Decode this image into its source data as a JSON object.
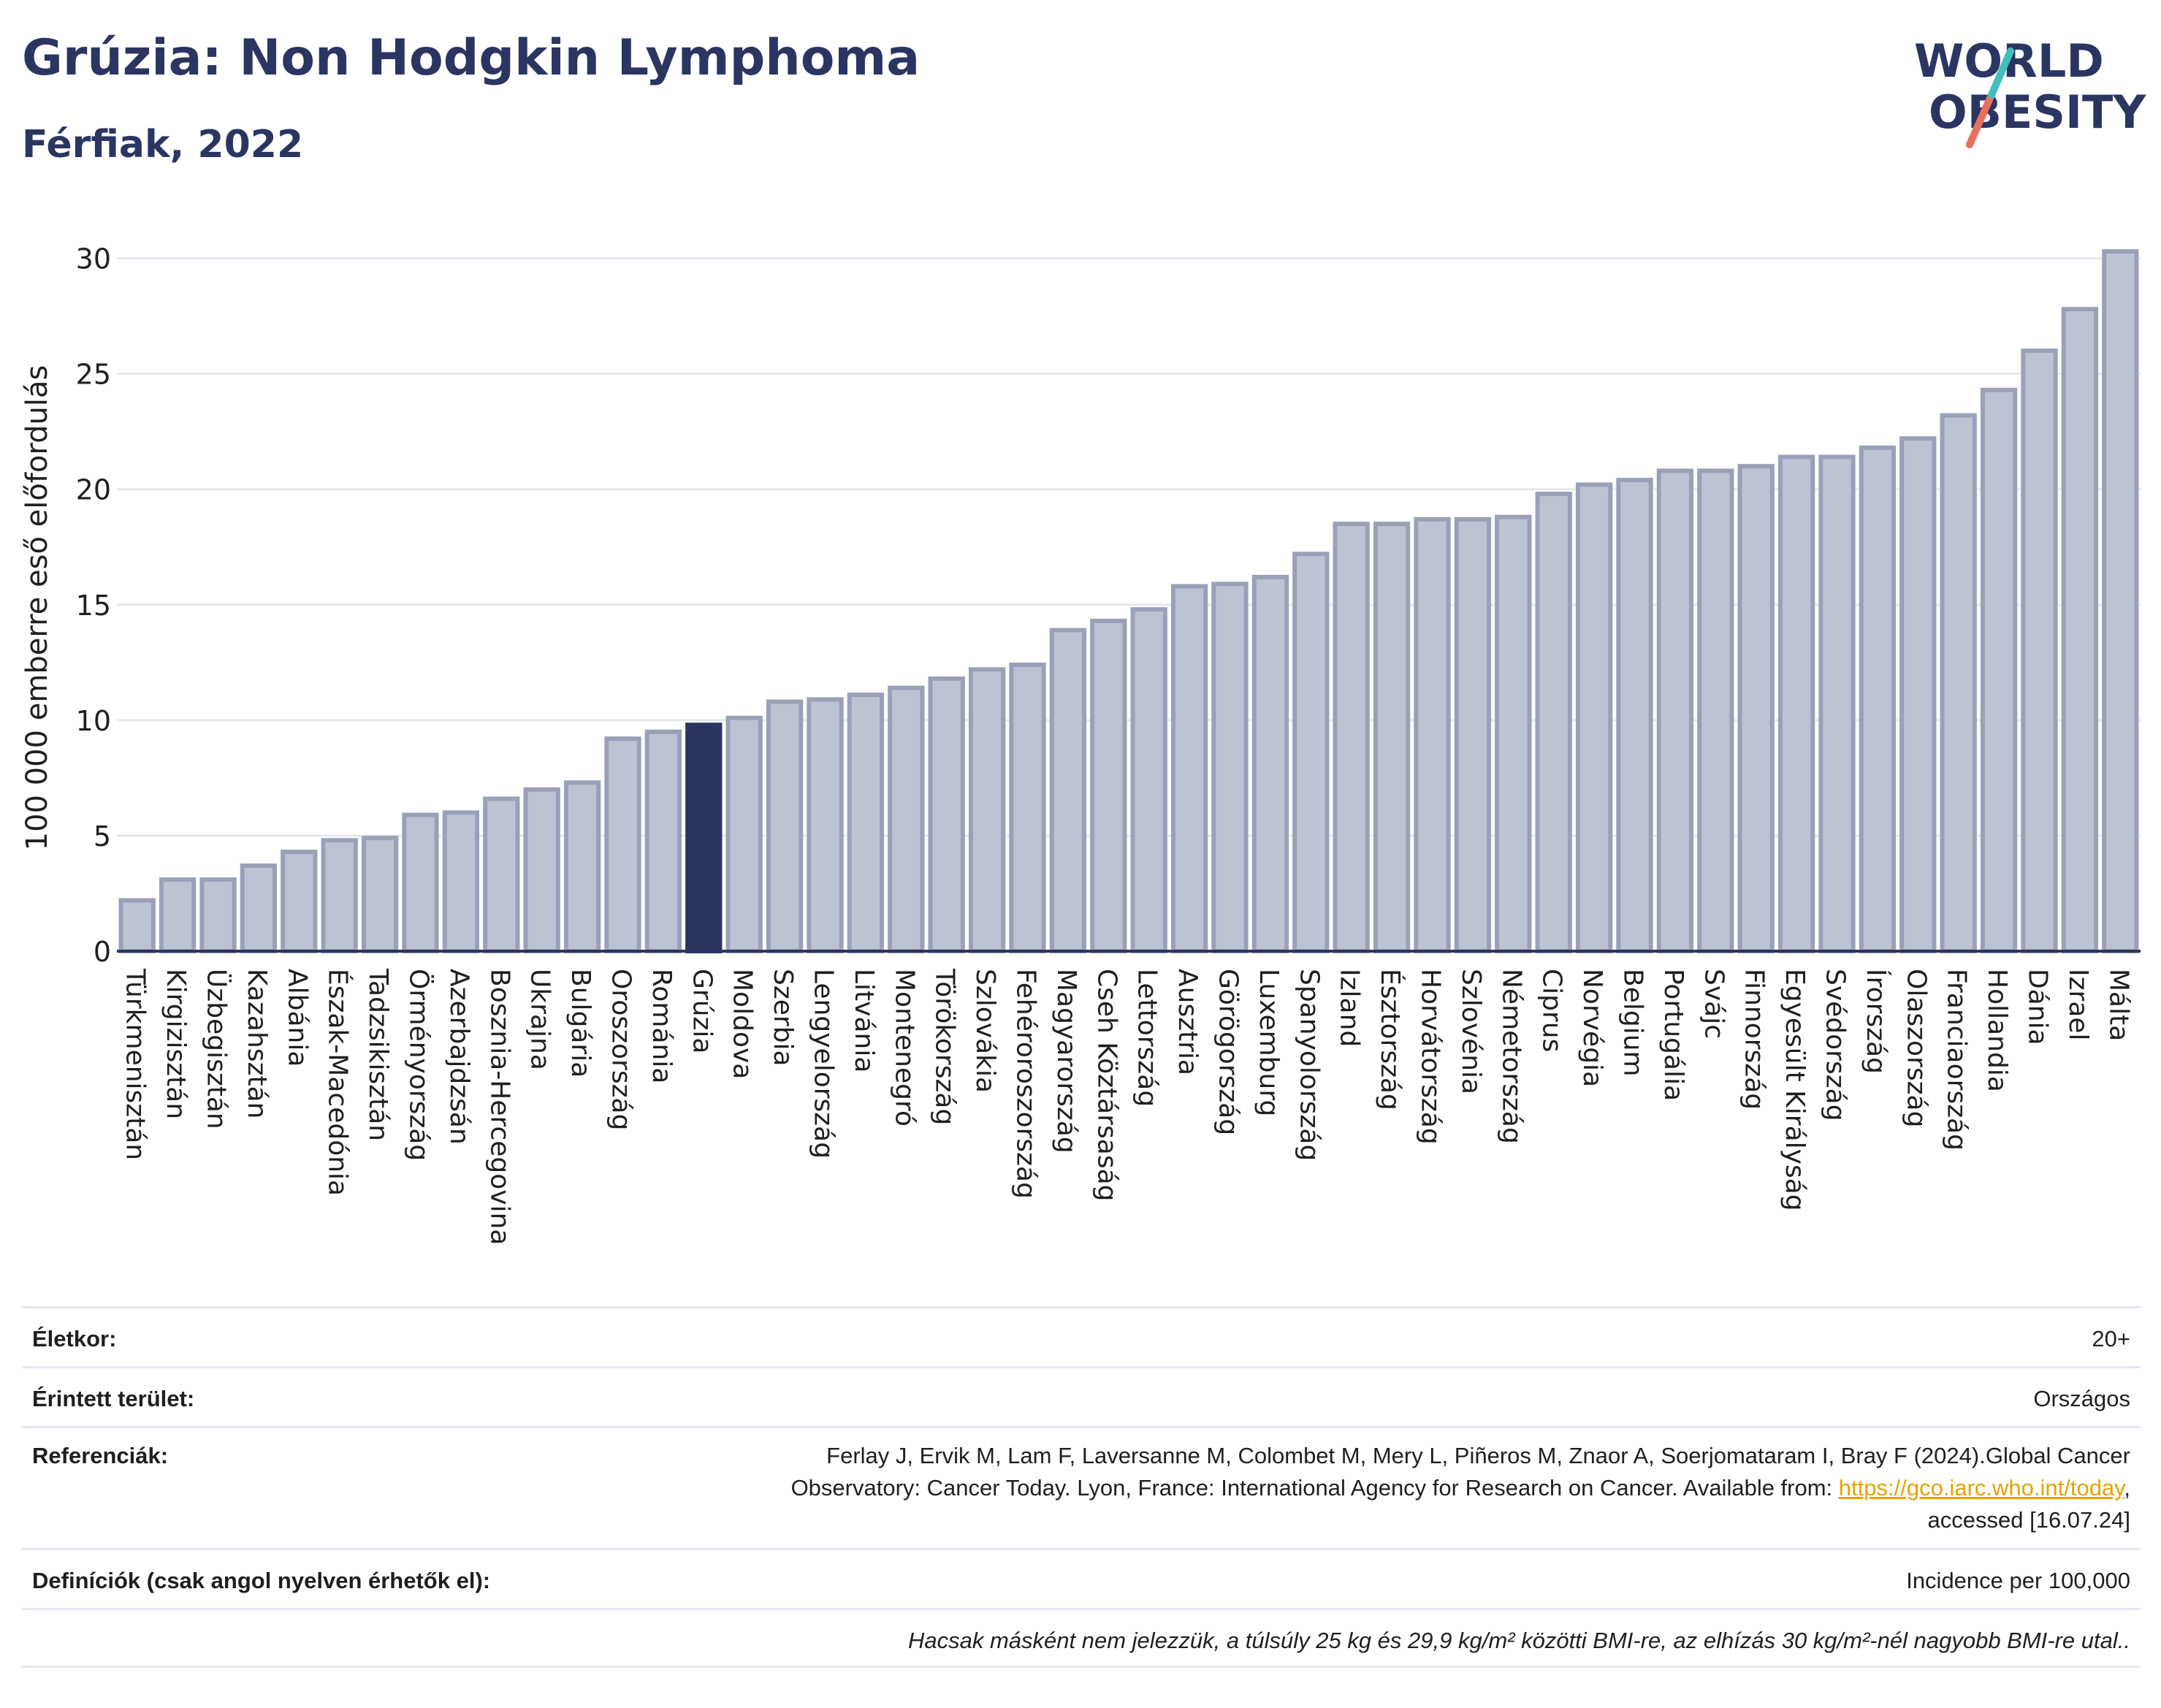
{
  "header": {
    "title": "Grúzia: Non Hodgkin Lymphoma",
    "subtitle": "Férfiak, 2022"
  },
  "logo": {
    "line1": "WORLD",
    "line2": "OBESITY"
  },
  "colors": {
    "bar": "#bec3d3",
    "bar_edge": "#9aa0b8",
    "highlight": "#2b3561",
    "grid": "#e5e8ee",
    "axis": "#2b3561"
  },
  "chart_data": {
    "type": "bar",
    "ylabel": "100 000 emberre eső előfordulás",
    "ylim": [
      0,
      31
    ],
    "yticks": [
      0,
      5,
      10,
      15,
      20,
      25,
      30
    ],
    "grid": true,
    "highlight": "Grúzia",
    "categories": [
      "Türkmenisztán",
      "Kirgizisztán",
      "Üzbegisztán",
      "Kazahsztán",
      "Albánia",
      "Észak-Macedónia",
      "Tadzsikisztán",
      "Örményország",
      "Azerbajdzsán",
      "Bosznia-Hercegovina",
      "Ukrajna",
      "Bulgária",
      "Oroszország",
      "Románia",
      "Grúzia",
      "Moldova",
      "Szerbia",
      "Lengyelország",
      "Litvánia",
      "Montenegró",
      "Törökország",
      "Szlovákia",
      "Fehéroroszország",
      "Magyarország",
      "Cseh Köztársaság",
      "Lettország",
      "Ausztria",
      "Görögország",
      "Luxemburg",
      "Spanyolország",
      "Izland",
      "Észtország",
      "Horvátország",
      "Szlovénia",
      "Németország",
      "Ciprus",
      "Norvégia",
      "Belgium",
      "Portugália",
      "Svájc",
      "Finnország",
      "Egyesült Királyság",
      "Svédország",
      "Írország",
      "Olaszország",
      "Franciaország",
      "Hollandia",
      "Dánia",
      "Izrael",
      "Málta"
    ],
    "values": [
      2.2,
      3.1,
      3.1,
      3.7,
      4.3,
      4.8,
      4.9,
      5.9,
      6.0,
      6.6,
      7.0,
      7.3,
      9.2,
      9.5,
      9.8,
      10.1,
      10.8,
      10.9,
      11.1,
      11.4,
      11.8,
      12.2,
      12.4,
      13.9,
      14.3,
      14.8,
      15.8,
      15.9,
      16.2,
      17.2,
      18.5,
      18.5,
      18.7,
      18.7,
      18.8,
      19.8,
      20.2,
      20.4,
      20.8,
      20.8,
      21.0,
      21.4,
      21.4,
      21.8,
      22.2,
      23.2,
      24.3,
      26.0,
      27.8,
      30.3
    ]
  },
  "info": {
    "age_label": "Életkor:",
    "age_value": "20+",
    "area_label": "Érintett terület:",
    "area_value": "Országos",
    "ref_label": "Referenciák:",
    "ref_line1": "Ferlay J, Ervik M, Lam F, Laversanne M, Colombet M, Mery L, Piñeros M, Znaor A, Soerjomataram I, Bray F (2024).Global Cancer",
    "ref_line2_pre": "Observatory: Cancer Today. Lyon, France: International Agency for Research on Cancer. Available from: ",
    "ref_link": "https://gco.iarc.who.int/today",
    "ref_line2_post": ",",
    "ref_line3": "accessed [16.07.24]",
    "def_label": "Definíciók (csak angol nyelven érhetők el):",
    "def_value": "Incidence per 100,000",
    "footnote": "Hacsak másként nem jelezzük, a túlsúly 25 kg és 29,9 kg/m² közötti BMI-re, az elhízás 30 kg/m²-nél nagyobb BMI-re utal.."
  }
}
